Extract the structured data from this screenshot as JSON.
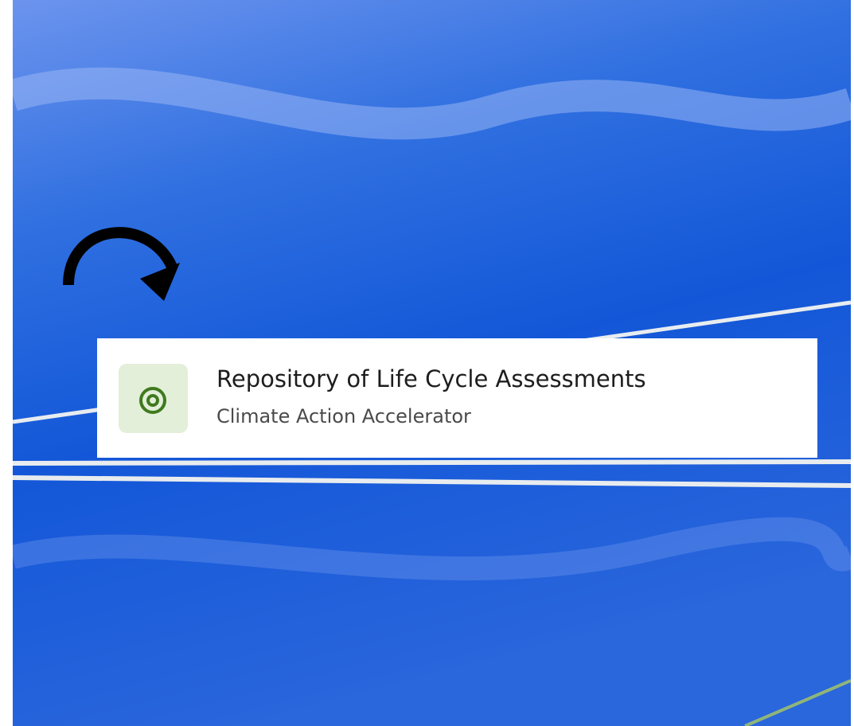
{
  "card": {
    "title": "Repository of Life Cycle Assessments",
    "subtitle": "Climate Action Accelerator"
  }
}
